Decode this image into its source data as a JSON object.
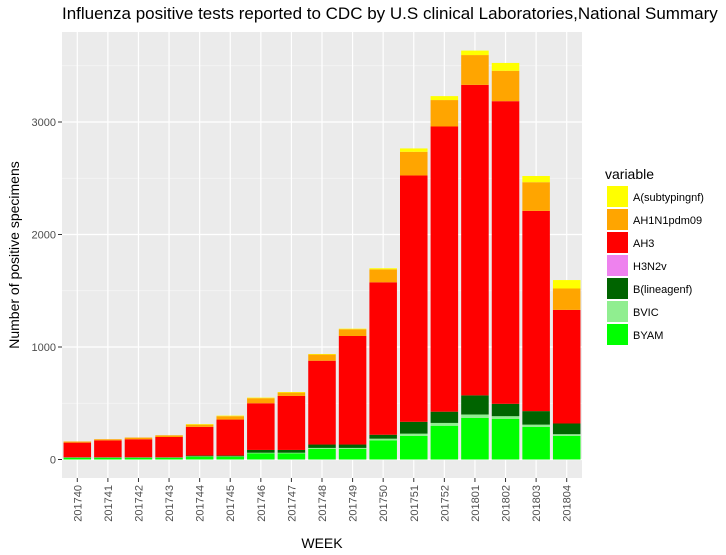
{
  "chart_data": {
    "type": "bar",
    "stacked": true,
    "title": "Influenza positive tests reported to CDC by U.S clinical Laboratories,National Summary",
    "xlabel": "WEEK",
    "ylabel": "Number of positive specimens",
    "ylim": [
      0,
      3700
    ],
    "yticks": [
      0,
      1000,
      2000,
      3000
    ],
    "ytick_labels": [
      "0",
      "1000",
      "2000",
      "3000"
    ],
    "grid": true,
    "legend_title": "variable",
    "legend_position": "right",
    "categories": [
      "201740",
      "201741",
      "201742",
      "201743",
      "201744",
      "201745",
      "201746",
      "201747",
      "201748",
      "201749",
      "201750",
      "201751",
      "201752",
      "201801",
      "201802",
      "201803",
      "201804"
    ],
    "series": [
      {
        "name": "BYAM",
        "color": "#00FF00",
        "values": [
          15,
          15,
          15,
          15,
          25,
          25,
          55,
          55,
          95,
          95,
          170,
          210,
          300,
          370,
          360,
          290,
          210
        ]
      },
      {
        "name": "BVIC",
        "color": "#90EE90",
        "values": [
          2,
          2,
          2,
          2,
          3,
          3,
          5,
          5,
          8,
          8,
          15,
          20,
          25,
          30,
          25,
          20,
          15
        ]
      },
      {
        "name": "B(lineagenf)",
        "color": "#006400",
        "values": [
          3,
          3,
          3,
          3,
          7,
          7,
          25,
          25,
          30,
          30,
          35,
          105,
          100,
          170,
          110,
          120,
          95
        ]
      },
      {
        "name": "H3N2v",
        "color": "#EE82EE",
        "values": [
          0,
          0,
          0,
          0,
          0,
          0,
          0,
          0,
          0,
          0,
          0,
          0,
          0,
          0,
          0,
          0,
          0
        ]
      },
      {
        "name": "AH3",
        "color": "#FF0000",
        "values": [
          130,
          150,
          160,
          180,
          255,
          320,
          415,
          480,
          745,
          965,
          1355,
          2190,
          2535,
          2760,
          2690,
          1780,
          1010
        ]
      },
      {
        "name": "AH1N1pdm09",
        "color": "#FFA500",
        "values": [
          10,
          10,
          15,
          15,
          20,
          30,
          45,
          30,
          55,
          60,
          115,
          210,
          235,
          265,
          270,
          255,
          190
        ]
      },
      {
        "name": "A(subtypingnf)",
        "color": "#FFFF00",
        "values": [
          0,
          0,
          0,
          0,
          5,
          5,
          5,
          5,
          5,
          5,
          10,
          30,
          35,
          40,
          70,
          55,
          75
        ]
      }
    ]
  }
}
